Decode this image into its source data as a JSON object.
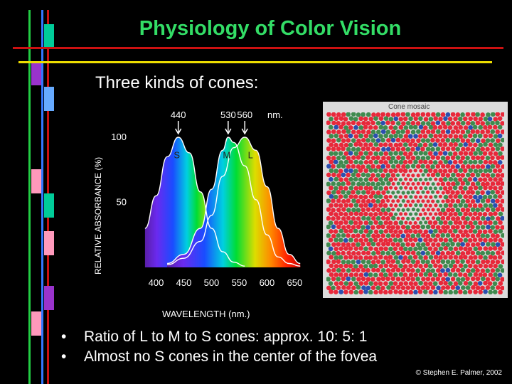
{
  "slide": {
    "title": "Physiology of Color Vision",
    "subtitle": "Three kinds of cones:",
    "bullets": [
      "Ratio of L to M to S cones: approx. 10: 5: 1",
      "Almost no S cones in the center of the fovea"
    ],
    "copyright": "© Stephen E. Palmer, 2002"
  },
  "mosaic": {
    "label": "Cone mosaic",
    "colors": {
      "L": "#e8283a",
      "M": "#3f8a4e",
      "S": "#2a4fb0",
      "frame": "#dcdcdc"
    },
    "ratio": {
      "L": 10,
      "M": 5,
      "S": 1
    }
  },
  "decor": {
    "colors": {
      "green": "#22cc44",
      "blue": "#3377ff",
      "red": "#cc1111",
      "yellow": "#eedd00",
      "cyan": "#00cc99",
      "purple": "#9933cc",
      "lightblue": "#66aaff",
      "pink": "#ff99bb"
    }
  },
  "chart_data": {
    "type": "line",
    "xlabel": "WAVELENGTH (nm.)",
    "ylabel": "RELATIVE ABSORBANCE (%)",
    "xlim": [
      375,
      670
    ],
    "ylim": [
      0,
      100
    ],
    "x_ticks": [
      400,
      450,
      500,
      550,
      600,
      650
    ],
    "y_ticks": [
      50,
      100
    ],
    "peak_markers": [
      {
        "value": 440,
        "label": "440"
      },
      {
        "value": 530,
        "label": "530"
      },
      {
        "value": 560,
        "label": "560"
      }
    ],
    "peak_unit_label": "nm.",
    "series": [
      {
        "name": "S",
        "x": [
          380,
          400,
          420,
          440,
          460,
          480,
          500,
          520,
          540,
          560
        ],
        "y": [
          30,
          55,
          85,
          100,
          88,
          58,
          30,
          12,
          4,
          1
        ]
      },
      {
        "name": "M",
        "x": [
          420,
          450,
          480,
          500,
          520,
          530,
          540,
          560,
          580,
          600,
          620,
          640,
          660
        ],
        "y": [
          3,
          10,
          30,
          60,
          90,
          100,
          96,
          78,
          52,
          25,
          8,
          3,
          1
        ]
      },
      {
        "name": "L",
        "x": [
          420,
          450,
          480,
          500,
          520,
          540,
          560,
          580,
          600,
          620,
          640,
          660
        ],
        "y": [
          2,
          7,
          20,
          40,
          70,
          92,
          100,
          90,
          62,
          30,
          10,
          3
        ]
      }
    ]
  }
}
